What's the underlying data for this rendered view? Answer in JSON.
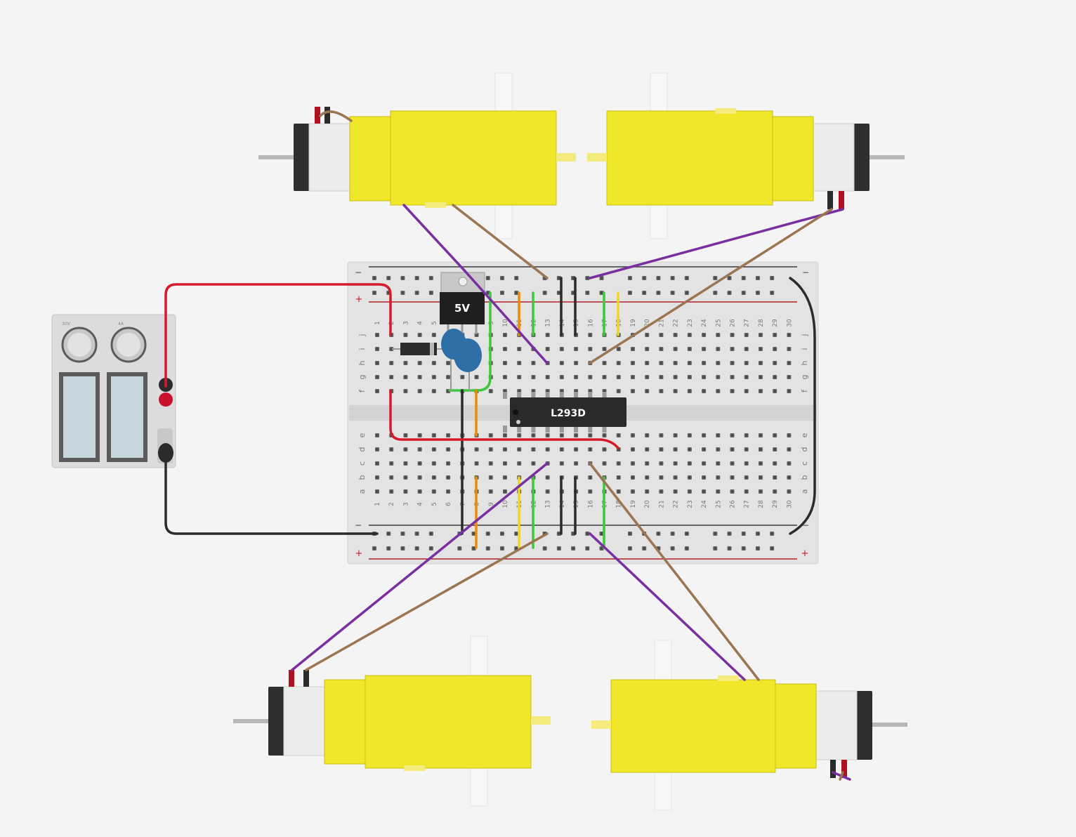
{
  "board": {
    "row_labels_top": [
      "j",
      "i",
      "h",
      "g",
      "f"
    ],
    "row_labels_bottom": [
      "e",
      "d",
      "c",
      "b",
      "a"
    ],
    "column_numbers": [
      "1",
      "2",
      "3",
      "4",
      "5",
      "6",
      "7",
      "8",
      "9",
      "10",
      "11",
      "12",
      "13",
      "14",
      "15",
      "16",
      "17",
      "18",
      "19",
      "20",
      "21",
      "22",
      "23",
      "24",
      "25",
      "26",
      "27",
      "28",
      "29",
      "30"
    ],
    "rail_minus": "−",
    "rail_plus": "+"
  },
  "regulator": {
    "label": "5V"
  },
  "chip": {
    "label": "L293D"
  },
  "power_supply": {
    "knob_labels": [
      "30V",
      "4A"
    ],
    "terminal_colors": [
      "#2b2b2b",
      "#c8102e",
      "#2b2b2b"
    ]
  },
  "motors": [
    {
      "id": "top-left"
    },
    {
      "id": "top-right"
    },
    {
      "id": "bottom-left"
    },
    {
      "id": "bottom-right"
    }
  ],
  "colors": {
    "motor_yellow": "#f0e62a",
    "wire_purple": "#7a2fa0",
    "wire_brown": "#9b7551",
    "wire_red": "#d61a2a",
    "wire_black": "#2b2b2b",
    "wire_green": "#3cc83c",
    "wire_orange": "#f08a00",
    "wire_yellow": "#f2d51c",
    "capacitor_blue": "#2f6fa8"
  }
}
